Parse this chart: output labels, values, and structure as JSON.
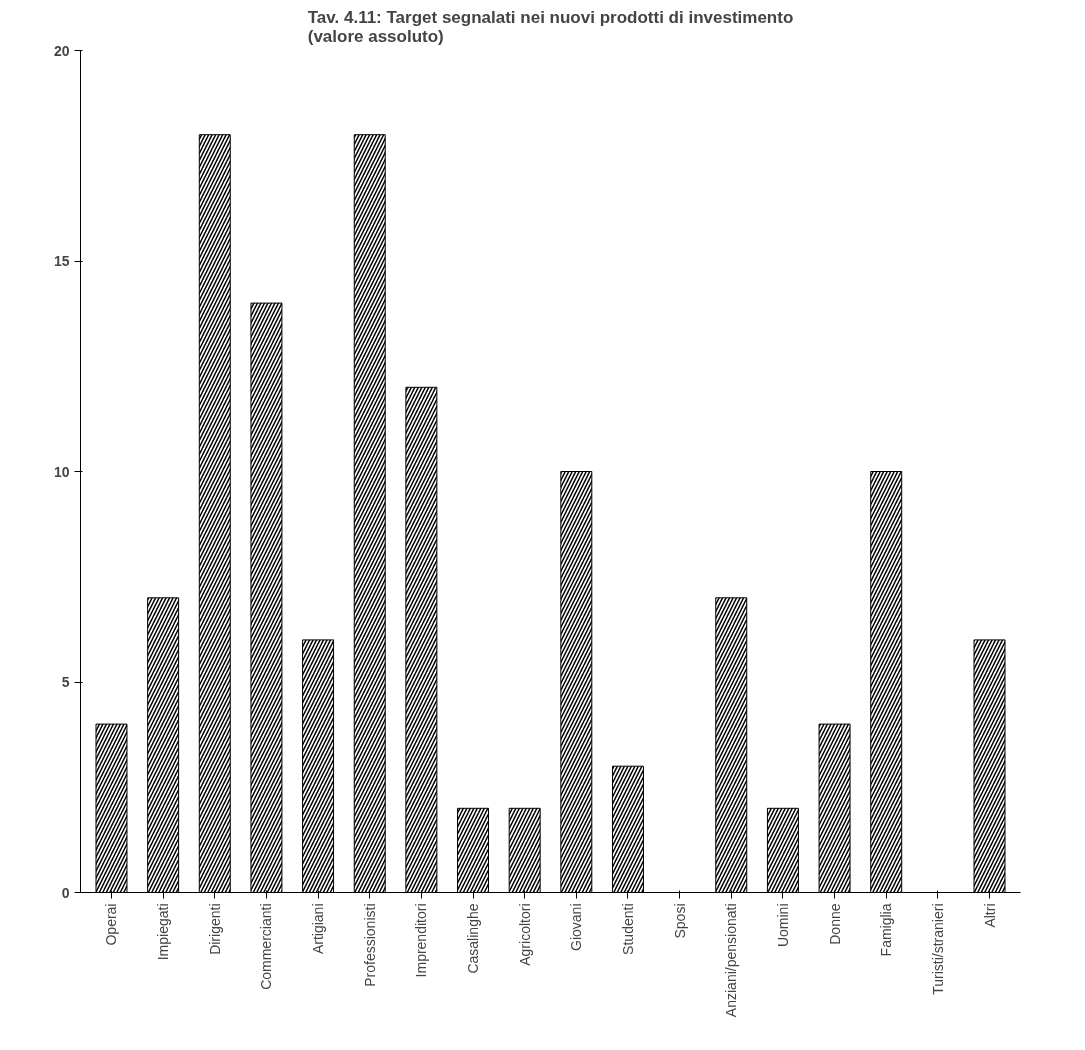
{
  "chart_data": {
    "type": "bar",
    "title": "Tav. 4.11: Target segnalati nei nuovi prodotti di investimento\n(valore assoluto)",
    "categories": [
      "Operai",
      "Impiegati",
      "Dirigenti",
      "Commercianti",
      "Artigiani",
      "Professionisti",
      "Imprenditori",
      "Casalinghe",
      "Agricoltori",
      "Giovani",
      "Studenti",
      "Sposi",
      "Anziani/pensionati",
      "Uomini",
      "Donne",
      "Famiglia",
      "Turisti/stranieri",
      "Altri"
    ],
    "values": [
      4,
      7,
      18,
      14,
      6,
      18,
      12,
      2,
      2,
      10,
      3,
      0,
      7,
      2,
      4,
      10,
      0,
      6
    ],
    "color": "#000000",
    "ylim": [
      0,
      20
    ],
    "yticks": [
      0,
      5,
      10,
      15,
      20
    ],
    "grid": false
  }
}
